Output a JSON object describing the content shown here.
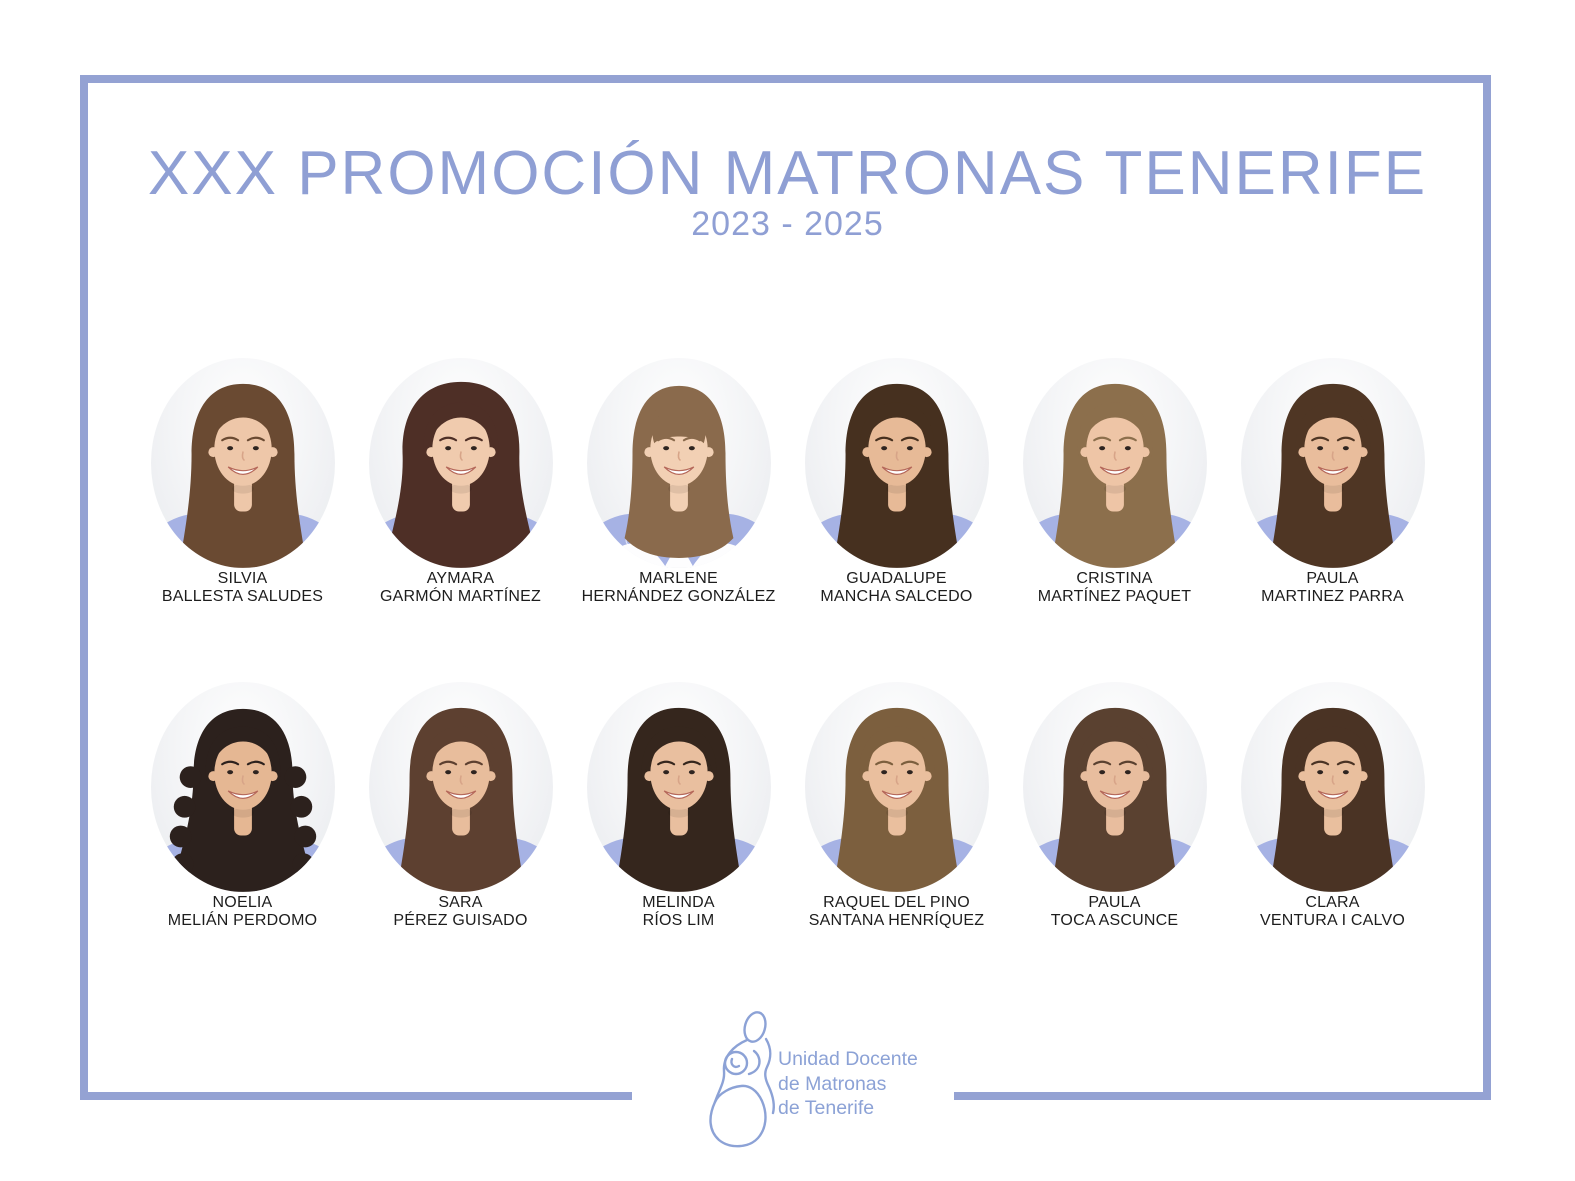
{
  "header": {
    "title": "XXX PROMOCIÓN MATRONAS TENERIFE",
    "years": "2023 - 2025"
  },
  "colors": {
    "frame": "#94a2d3",
    "title": "#8f9fd4",
    "logo": "#8ca2d6",
    "sash": "#a6b2e4",
    "name_text": "#1d1d1d"
  },
  "people": [
    {
      "line1": "SILVIA",
      "line2": "BALLESTA SALUDES",
      "style": "long",
      "hair": "#6a4a32",
      "skin": "#eec7a9"
    },
    {
      "line1": "AYMARA",
      "line2": "GARMÓN MARTÍNEZ",
      "style": "volume",
      "hair": "#4e2f26",
      "skin": "#f0cbae"
    },
    {
      "line1": "MARLENE",
      "line2": "HERNÁNDEZ GONZÁLEZ",
      "style": "bangs",
      "hair": "#8a6a4c",
      "skin": "#f2d0b4"
    },
    {
      "line1": "GUADALUPE",
      "line2": "MANCHA SALCEDO",
      "style": "long",
      "hair": "#46301f",
      "skin": "#e7ba97"
    },
    {
      "line1": "CRISTINA",
      "line2": "MARTÍNEZ PAQUET",
      "style": "long",
      "hair": "#8c6f4c",
      "skin": "#eec5a6"
    },
    {
      "line1": "PAULA",
      "line2": "MARTINEZ PARRA",
      "style": "long",
      "hair": "#4f3624",
      "skin": "#e9bd9c"
    },
    {
      "line1": "NOELIA",
      "line2": "MELIÁN PERDOMO",
      "style": "curly",
      "hair": "#2c211d",
      "skin": "#e5b793"
    },
    {
      "line1": "SARA",
      "line2": "PÉREZ GUISADO",
      "style": "long",
      "hair": "#5d4030",
      "skin": "#e8bd9c"
    },
    {
      "line1": "MELINDA",
      "line2": "RÍOS LIM",
      "style": "long",
      "hair": "#35261d",
      "skin": "#e9bf9f"
    },
    {
      "line1": "RAQUEL DEL PINO",
      "line2": "SANTANA HENRÍQUEZ",
      "style": "long",
      "hair": "#7c5f3e",
      "skin": "#eabf9e"
    },
    {
      "line1": "PAULA",
      "line2": "TOCA ASCUNCE",
      "style": "long",
      "hair": "#5a4130",
      "skin": "#e8bd9e"
    },
    {
      "line1": "CLARA",
      "line2": "VENTURA I CALVO",
      "style": "long",
      "hair": "#4a3324",
      "skin": "#e9bf9e"
    }
  ],
  "footer": {
    "org_lines": [
      "Unidad Docente",
      "de Matronas",
      "de Tenerife"
    ]
  }
}
